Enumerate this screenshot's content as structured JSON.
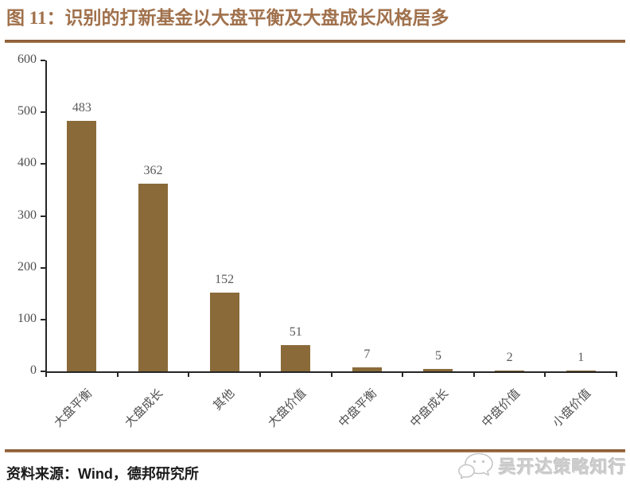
{
  "header": {
    "title": "图 11：识别的打新基金以大盘平衡及大盘成长风格居多"
  },
  "source": {
    "prefix": "资料来源：",
    "name": "Wind",
    "suffix": "，德邦研究所"
  },
  "watermark": {
    "icon": "wechat-bubbles-icon",
    "text": "吴开达策略知行"
  },
  "colors": {
    "title_text": "#A0714C",
    "rule": "#8F5F38",
    "rule_light": "#B18A63",
    "bar_fill": "#8A6A39",
    "axis_line": "#262626",
    "tick_label": "#4F4F4F",
    "data_label": "#595959",
    "source_text": "#1a1a1a",
    "watermark_gray": "#cfcfcf"
  },
  "chart_data": {
    "type": "bar",
    "title": "图 11：识别的打新基金以大盘平衡及大盘成长风格居多",
    "categories": [
      "大盘平衡",
      "大盘成长",
      "其他",
      "大盘价值",
      "中盘平衡",
      "中盘成长",
      "中盘价值",
      "小盘价值"
    ],
    "values": [
      483,
      362,
      152,
      51,
      7,
      5,
      2,
      1
    ],
    "xlabel": "",
    "ylabel": "",
    "ylim": [
      0,
      600
    ],
    "yticks": [
      0,
      100,
      200,
      300,
      400,
      500,
      600
    ],
    "grid": false,
    "legend": false,
    "data_labels": true,
    "bar_color": "#8A6A39",
    "category_label_rotation_deg": -45
  }
}
